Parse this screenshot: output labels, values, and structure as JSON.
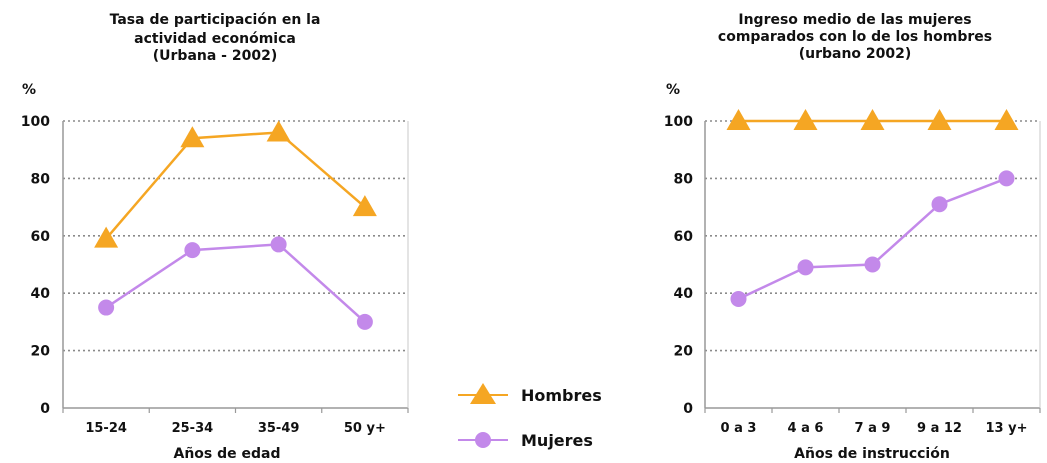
{
  "legend": {
    "hombres": "Hombres",
    "mujeres": "Mujeres",
    "hombres_color": "#f5a623",
    "mujeres_color": "#c389ea",
    "placement": "bottom-center between charts"
  },
  "chart_data": [
    {
      "type": "line",
      "title_lines": [
        "Tasa de participación en la",
        "actividad económica",
        "(Urbana - 2002)"
      ],
      "ylabel": "%",
      "xlabel": "Años de edad",
      "categories": [
        "15-24",
        "25-34",
        "35-49",
        "50 y+"
      ],
      "ylim": [
        0,
        100
      ],
      "yticks": [
        0,
        20,
        40,
        60,
        80,
        100
      ],
      "grid": "dotted horizontal",
      "series": [
        {
          "name": "Hombres",
          "values": [
            59,
            94,
            96,
            70
          ],
          "color": "#f5a623",
          "marker": "triangle"
        },
        {
          "name": "Mujeres",
          "values": [
            35,
            55,
            57,
            30
          ],
          "color": "#c389ea",
          "marker": "circle"
        }
      ]
    },
    {
      "type": "line",
      "title_lines": [
        "Ingreso medio de las mujeres",
        "comparados con lo de los hombres",
        "(urbano 2002)"
      ],
      "ylabel": "%",
      "xlabel": "Años de instrucción",
      "categories": [
        "0 a 3",
        "4 a 6",
        "7 a 9",
        "9 a 12",
        "13 y+"
      ],
      "ylim": [
        0,
        100
      ],
      "yticks": [
        0,
        20,
        40,
        60,
        80,
        100
      ],
      "grid": "dotted horizontal",
      "series": [
        {
          "name": "Hombres",
          "values": [
            100,
            100,
            100,
            100,
            100
          ],
          "color": "#f5a623",
          "marker": "triangle"
        },
        {
          "name": "Mujeres",
          "values": [
            38,
            49,
            50,
            71,
            80
          ],
          "color": "#c389ea",
          "marker": "circle"
        }
      ]
    }
  ]
}
